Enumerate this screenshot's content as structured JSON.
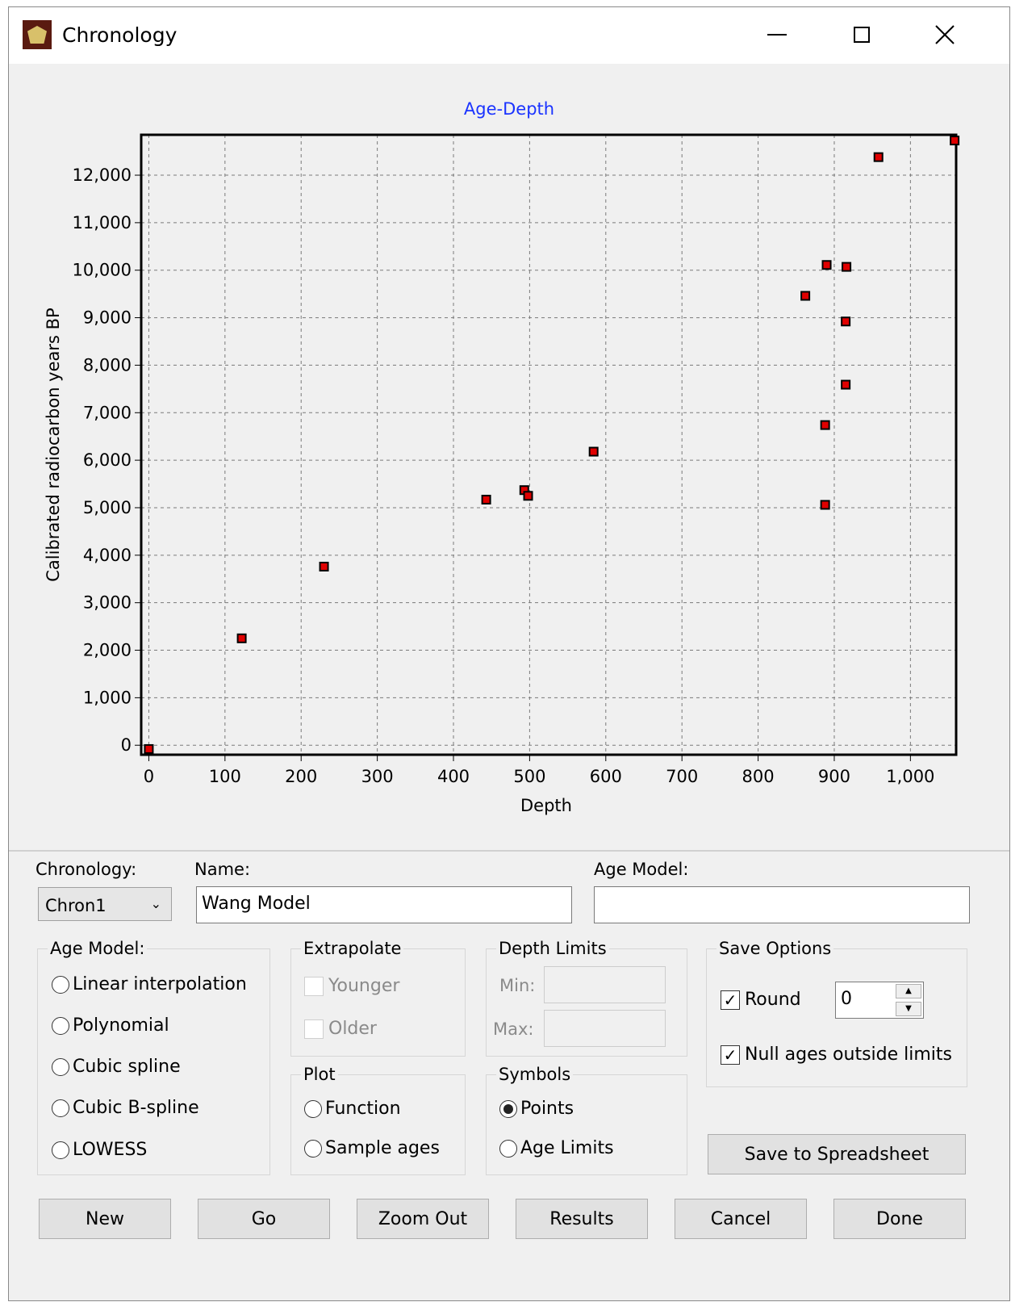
{
  "window": {
    "title": "Chronology",
    "icons": {
      "app": "app-logo-icon",
      "minimize": "minimize-icon",
      "maximize": "maximize-icon",
      "close": "close-icon"
    }
  },
  "chart_data": {
    "type": "scatter",
    "title": "Age-Depth",
    "xlabel": "Depth",
    "ylabel": "Calibrated radiocarbon years BP",
    "xlim": [
      -10,
      1060
    ],
    "ylim": [
      -200,
      12850
    ],
    "xticks": [
      0,
      100,
      200,
      300,
      400,
      500,
      600,
      700,
      800,
      900,
      1000
    ],
    "yticks": [
      0,
      1000,
      2000,
      3000,
      4000,
      5000,
      6000,
      7000,
      8000,
      9000,
      10000,
      11000,
      12000
    ],
    "xtick_labels": [
      "0",
      "100",
      "200",
      "300",
      "400",
      "500",
      "600",
      "700",
      "800",
      "900",
      "1,000"
    ],
    "ytick_labels": [
      "0",
      "1,000",
      "2,000",
      "3,000",
      "4,000",
      "5,000",
      "6,000",
      "7,000",
      "8,000",
      "9,000",
      "10,000",
      "11,000",
      "12,000"
    ],
    "grid": true,
    "marker_color": "#e00000",
    "points": [
      {
        "x": 0,
        "y": -80
      },
      {
        "x": 122,
        "y": 2250
      },
      {
        "x": 230,
        "y": 3760
      },
      {
        "x": 443,
        "y": 5170
      },
      {
        "x": 493,
        "y": 5370
      },
      {
        "x": 498,
        "y": 5250
      },
      {
        "x": 584,
        "y": 6180
      },
      {
        "x": 862,
        "y": 9460
      },
      {
        "x": 890,
        "y": 10110
      },
      {
        "x": 888,
        "y": 6740
      },
      {
        "x": 888,
        "y": 5060
      },
      {
        "x": 916,
        "y": 10070
      },
      {
        "x": 915,
        "y": 8920
      },
      {
        "x": 915,
        "y": 7590
      },
      {
        "x": 958,
        "y": 12380
      },
      {
        "x": 1058,
        "y": 12730
      }
    ]
  },
  "form": {
    "chronology_label": "Chronology:",
    "chronology_value": "Chron1",
    "name_label": "Name:",
    "name_value": "Wang Model",
    "age_model_label": "Age Model:",
    "age_model_value": ""
  },
  "age_model_group": {
    "title": "Age Model:",
    "options": [
      "Linear interpolation",
      "Polynomial",
      "Cubic spline",
      "Cubic B-spline",
      "LOWESS"
    ],
    "selected": null
  },
  "extrapolate": {
    "title": "Extrapolate",
    "younger": "Younger",
    "older": "Older"
  },
  "depth_limits": {
    "title": "Depth Limits",
    "min_label": "Min:",
    "max_label": "Max:"
  },
  "plot": {
    "title": "Plot",
    "function": "Function",
    "sample_ages": "Sample ages"
  },
  "symbols": {
    "title": "Symbols",
    "points": "Points",
    "age_limits": "Age Limits",
    "selected": "Points"
  },
  "save_options": {
    "title": "Save Options",
    "round_label": "Round",
    "round_checked": true,
    "round_value": "0",
    "null_ages_label": "Null ages outside limits",
    "null_ages_checked": true
  },
  "buttons": {
    "save_spreadsheet": "Save to Spreadsheet",
    "new": "New",
    "go": "Go",
    "zoom_out": "Zoom Out",
    "results": "Results",
    "cancel": "Cancel",
    "done": "Done"
  }
}
